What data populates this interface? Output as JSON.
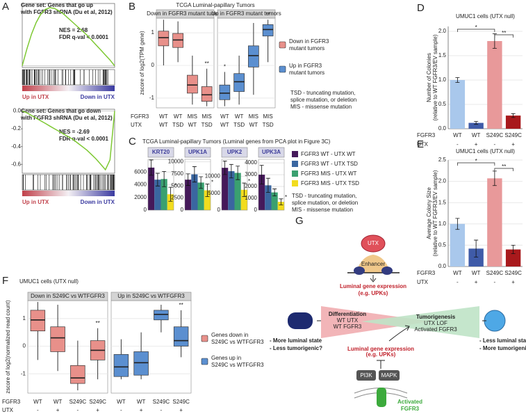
{
  "panels": [
    "A",
    "B",
    "C",
    "D",
    "E",
    "F",
    "G"
  ],
  "chart_data": [
    {
      "type": "line",
      "title": [
        "Gene set: Genes that go up",
        "with FGFR3 shRNA (Du et al, 2012)"
      ],
      "annotations": [
        "NES = 2.68",
        "FDR q-val < 0.0001"
      ],
      "x": [
        0,
        5,
        10,
        15,
        20,
        25,
        30,
        35,
        40,
        45,
        50,
        55,
        60,
        65,
        70,
        75,
        80,
        85,
        90,
        95,
        100
      ],
      "values": [
        0,
        0.2,
        0.38,
        0.52,
        0.62,
        0.68,
        0.7,
        0.69,
        0.66,
        0.62,
        0.57,
        0.52,
        0.47,
        0.42,
        0.37,
        0.31,
        0.25,
        0.19,
        0.13,
        0.07,
        0
      ],
      "color": "#7dc832",
      "xlim": [
        0,
        100
      ],
      "ylim": [
        -0.02,
        0.75
      ],
      "x_labels": [
        "Up in UTX",
        "Down in UTX"
      ]
    },
    {
      "type": "line",
      "title": [
        "Gene set: Genes that go down",
        "with FGFR3 shRNA (Du et al, 2012)"
      ],
      "annotations": [
        "NES = -2.69",
        "FDR q-val < 0.0001"
      ],
      "x": [
        0,
        5,
        10,
        15,
        20,
        25,
        30,
        35,
        40,
        45,
        50,
        55,
        60,
        65,
        70,
        75,
        80,
        85,
        90,
        95,
        100
      ],
      "values": [
        0,
        -0.02,
        -0.05,
        -0.08,
        -0.11,
        -0.14,
        -0.17,
        -0.2,
        -0.23,
        -0.26,
        -0.29,
        -0.32,
        -0.36,
        -0.4,
        -0.44,
        -0.49,
        -0.54,
        -0.6,
        -0.66,
        -0.55,
        0
      ],
      "color": "#7dc832",
      "xlim": [
        0,
        100
      ],
      "ylim": [
        -0.7,
        0.02
      ],
      "yticks": [
        {
          "value": 0,
          "label": "0.0"
        },
        -0.2,
        -0.4,
        -0.6
      ],
      "x_labels": [
        "Up in UTX",
        "Down in UTX"
      ]
    },
    {
      "type": "box",
      "title": "TCGA Luminal-papillary Tumors",
      "ylabel": "zscore of log2(TPM gene)",
      "ylim": [
        -1.3,
        1.45
      ],
      "yticks": [
        -1,
        0,
        1
      ],
      "row_labels": [
        "FGFR3",
        "UTX"
      ],
      "categories": [
        "WT",
        "WT",
        "MIS",
        "MIS"
      ],
      "categories2": [
        "WT",
        "TSD",
        "WT",
        "TSD"
      ],
      "facets": [
        {
          "title": "Down in FGFR3 mutant tumors",
          "color": "#e8908a",
          "low": [
            0.0,
            0.1,
            -1.2,
            -1.25
          ],
          "q1": [
            0.6,
            0.55,
            -0.85,
            -1.1
          ],
          "median": [
            0.85,
            0.78,
            -0.6,
            -0.9
          ],
          "q3": [
            1.05,
            0.98,
            -0.3,
            -0.65
          ],
          "high": [
            1.4,
            1.35,
            0.3,
            -0.1
          ],
          "stars": [
            null,
            null,
            null,
            "**"
          ]
        },
        {
          "title": "Up in FGFR3 mutant tumors",
          "color": "#5b8fd0",
          "low": [
            -1.25,
            -1.2,
            -0.9,
            0.1
          ],
          "q1": [
            -1.05,
            -0.8,
            -0.05,
            0.9
          ],
          "median": [
            -0.85,
            -0.5,
            0.3,
            1.1
          ],
          "q3": [
            -0.6,
            -0.25,
            0.6,
            1.25
          ],
          "high": [
            -0.2,
            0.3,
            1.3,
            1.4
          ],
          "stars": [
            "*",
            null,
            null,
            "**"
          ]
        }
      ],
      "legend": [
        [
          "Down in FGFR3",
          "mutant tumors"
        ],
        [
          "Up in FGFR3",
          "mutant tumors"
        ]
      ],
      "notes": [
        "TSD - truncating mutation,",
        "splice mutation, or deletion",
        "MIS - missense mutation"
      ]
    },
    {
      "type": "grouped-bar",
      "title": "TCGA Luminal-papillary Tumors (Luminal genes from PCA plot in Figure 3C)",
      "series": [
        {
          "name": "FGFR3 WT - UTX WT",
          "color": "#45195a"
        },
        {
          "name": "FGFR3 WT - UTX TSD",
          "color": "#3a66a0"
        },
        {
          "name": "FGFR3 MIS - UTX WT",
          "color": "#3aa070"
        },
        {
          "name": "FGFR3 MIS - UTX TSD",
          "color": "#f2dc1e"
        }
      ],
      "panels": [
        {
          "name": "KRT20",
          "ylim": [
            0,
            8000
          ],
          "yticks": [
            0,
            2000,
            4000,
            6000
          ],
          "values": [
            6700,
            4800,
            4900,
            2500
          ],
          "errors": [
            1200,
            1000,
            1200,
            1100
          ],
          "star": "*"
        },
        {
          "name": "UPK1A",
          "ylim": [
            0,
            10500
          ],
          "yticks": [
            0,
            2500,
            5000,
            7500,
            10000
          ],
          "values": [
            6300,
            7400,
            5700,
            4100
          ],
          "errors": [
            1200,
            1600,
            1200,
            1300
          ],
          "star": "*"
        },
        {
          "name": "UPK2",
          "ylim": [
            0,
            15000
          ],
          "yticks": [
            0,
            5000,
            10000
          ],
          "values": [
            12500,
            11500,
            11000,
            6000
          ],
          "errors": [
            2000,
            2000,
            2000,
            2000
          ],
          "star": "*"
        },
        {
          "name": "UPK3A",
          "ylim": [
            0,
            4300
          ],
          "yticks": [
            0,
            1000,
            2000,
            3000,
            4000
          ],
          "values": [
            3000,
            2100,
            1500,
            700
          ],
          "errors": [
            800,
            600,
            300,
            250
          ],
          "star": "*"
        }
      ],
      "notes": [
        "TSD - truncating mutation,",
        "splice mutation, or deletion",
        "MIS - missense mutation"
      ]
    },
    {
      "type": "bar",
      "title": "UMUC1 cells (UTX null)",
      "ylabel": [
        "Number of Colonies",
        "(relative to WT FGFR3/EV sample)"
      ],
      "row_labels": [
        "FGFR3",
        "UTX"
      ],
      "categories": [
        "WT",
        "WT",
        "S249C",
        "S249C"
      ],
      "categories2": [
        "-",
        "+",
        "-",
        "+"
      ],
      "values": [
        1.0,
        0.12,
        1.8,
        0.27
      ],
      "errors": [
        0.05,
        0.03,
        0.15,
        0.04
      ],
      "colors": [
        "#a9c8ec",
        "#3f5ba8",
        "#e8999a",
        "#a8191c"
      ],
      "ylim": [
        0,
        2.1
      ],
      "yticks": [
        {
          "value": 0,
          "label": "0.0"
        },
        {
          "value": 0.5,
          "label": "0.5"
        },
        {
          "value": 1,
          "label": "1.0"
        },
        {
          "value": 1.5,
          "label": "1.5"
        },
        {
          "value": 2,
          "label": "2.0"
        }
      ],
      "significance": [
        "*",
        "**"
      ]
    },
    {
      "type": "bar",
      "title": "UMUC1 cells (UTX null)",
      "ylabel": [
        "Average Colony Size",
        "(relative to WT FGFR3/EV sample)"
      ],
      "row_labels": [
        "FGFR3",
        "UTX"
      ],
      "categories": [
        "WT",
        "WT",
        "S249C",
        "S249C"
      ],
      "categories2": [
        "-",
        "+",
        "-",
        "+"
      ],
      "values": [
        1.0,
        0.42,
        2.07,
        0.4
      ],
      "errors": [
        0.13,
        0.2,
        0.17,
        0.1
      ],
      "colors": [
        "#a9c8ec",
        "#3f5ba8",
        "#e8999a",
        "#a8191c"
      ],
      "ylim": [
        0,
        2.5
      ],
      "yticks": [
        {
          "value": 0,
          "label": "0.0"
        },
        {
          "value": 0.5,
          "label": "0.5"
        },
        {
          "value": 1,
          "label": "1.0"
        },
        {
          "value": 1.5,
          "label": "1.5"
        },
        {
          "value": 2,
          "label": "2.0"
        },
        {
          "value": 2.5,
          "label": "2.5"
        }
      ],
      "significance": [
        "*",
        "**"
      ]
    },
    {
      "type": "box",
      "title": "UMUC1 cells (UTX null)",
      "ylabel": "zscore of log2(normalized read count)",
      "ylim": [
        -1.7,
        1.65
      ],
      "yticks": [
        -1,
        0,
        1
      ],
      "row_labels": [
        "FGFR3",
        "UTX"
      ],
      "categories": [
        "WT",
        "WT",
        "S249C",
        "S249C"
      ],
      "categories2": [
        "-",
        "+",
        "-",
        "+"
      ],
      "facets": [
        {
          "title": "Down in S249C vs WTFGFR3",
          "color": "#e8908a",
          "low": [
            -0.5,
            -0.9,
            -1.6,
            -1.2
          ],
          "q1": [
            0.55,
            -0.2,
            -1.35,
            -0.5
          ],
          "median": [
            0.95,
            0.3,
            -1.15,
            -0.15
          ],
          "q3": [
            1.3,
            0.7,
            -0.7,
            0.2
          ],
          "high": [
            1.6,
            1.5,
            0.2,
            0.65
          ],
          "stars": [
            null,
            null,
            null,
            "**"
          ]
        },
        {
          "title": "Up in S249C vs WTFGFR3",
          "color": "#5b8fd0",
          "low": [
            -1.2,
            -1.2,
            0.5,
            -0.4
          ],
          "q1": [
            -1.1,
            -1.05,
            0.95,
            0.0
          ],
          "median": [
            -0.75,
            -0.6,
            1.15,
            0.2
          ],
          "q3": [
            -0.3,
            -0.2,
            1.3,
            0.7
          ],
          "high": [
            0.25,
            0.5,
            1.5,
            1.3
          ],
          "stars": [
            null,
            null,
            null,
            "**"
          ]
        }
      ],
      "legend": [
        [
          "Genes down in",
          "S249C vs WTFGFR3"
        ],
        [
          "Genes up in",
          "S249C vs WTFGFR3"
        ]
      ]
    }
  ],
  "diagram": {
    "utx": "UTX",
    "enhancer": "Enhancer",
    "luminal": [
      "Luminal gene expression",
      "(e.g. UPKs)"
    ],
    "differentiation": [
      "Differentiation",
      "WT UTX",
      "WT FGFR3"
    ],
    "tumorigenesis": [
      "Tumorigenesis",
      "UTX LOF",
      "Activated FGFR3"
    ],
    "left_state": [
      "- More luminal state",
      "- Less tumorigenic?"
    ],
    "right_state": [
      "- Less luminal state",
      "- More tumorigenic?"
    ],
    "small_luminal": [
      "Luminal gene expression",
      "(e.g. UPKs)"
    ],
    "pi3k": "PI3K",
    "mapk": "MAPK",
    "activated": [
      "Activated",
      "FGFR3"
    ]
  }
}
